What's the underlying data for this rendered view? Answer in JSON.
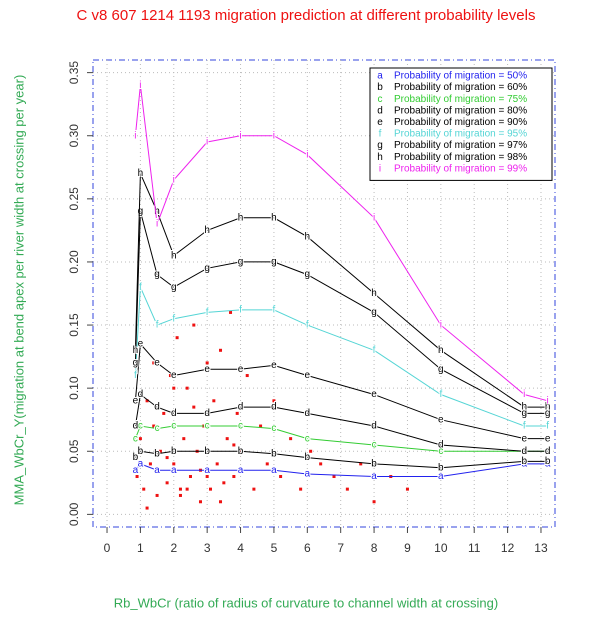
{
  "chart_data": {
    "type": "line",
    "title": "C v8 607 1214 1193 migration prediction at different probability levels",
    "x_label": "Rb_WbCr (ratio of radius of curvature to channel width at crossing)",
    "y_label": "MMA_WbCr_Y(migration at bend apex per river width at crossing per year)",
    "xlim": [
      -0.42,
      13.42
    ],
    "ylim": [
      -0.01,
      0.36
    ],
    "xticks": [
      0,
      1,
      2,
      3,
      4,
      5,
      6,
      7,
      8,
      9,
      10,
      11,
      12,
      13
    ],
    "yticks": [
      {
        "value": 0,
        "label": "0.00"
      },
      0.05,
      {
        "value": 0.1,
        "label": "0.10"
      },
      0.15,
      {
        "value": 0.2,
        "label": "0.20"
      },
      0.25,
      {
        "value": 0.3,
        "label": "0.30"
      },
      0.35
    ],
    "grid": true,
    "legend": "top-right",
    "x": [
      0.85,
      1.0,
      1.5,
      2.0,
      3.0,
      4.0,
      5.0,
      6.0,
      8.0,
      10.0,
      12.5,
      13.2
    ],
    "series": [
      {
        "symbol": "a",
        "name": "Probability of migration = 50%",
        "color": "#2222ee",
        "values": [
          0.035,
          0.04,
          0.035,
          0.035,
          0.035,
          0.035,
          0.035,
          0.032,
          0.03,
          0.03,
          0.04,
          0.04
        ]
      },
      {
        "symbol": "b",
        "name": "Probability of migration = 60%",
        "color": "#000000",
        "values": [
          0.045,
          0.05,
          0.048,
          0.05,
          0.05,
          0.05,
          0.048,
          0.045,
          0.04,
          0.037,
          0.042,
          0.042
        ]
      },
      {
        "symbol": "c",
        "name": "Probability of migration = 75%",
        "color": "#33cc33",
        "values": [
          0.06,
          0.07,
          0.068,
          0.07,
          0.07,
          0.07,
          0.068,
          0.06,
          0.055,
          0.05,
          0.05,
          0.05
        ]
      },
      {
        "symbol": "d",
        "name": "Probability of migration = 80%",
        "color": "#000000",
        "values": [
          0.07,
          0.095,
          0.085,
          0.08,
          0.08,
          0.085,
          0.085,
          0.08,
          0.07,
          0.055,
          0.05,
          0.05
        ]
      },
      {
        "symbol": "e",
        "name": "Probability of migration = 90%",
        "color": "#000000",
        "values": [
          0.09,
          0.135,
          0.12,
          0.11,
          0.115,
          0.115,
          0.118,
          0.11,
          0.095,
          0.075,
          0.06,
          0.06
        ]
      },
      {
        "symbol": "f",
        "name": "Probability of migration = 95%",
        "color": "#55d5d5",
        "values": [
          0.11,
          0.18,
          0.15,
          0.155,
          0.16,
          0.162,
          0.162,
          0.15,
          0.13,
          0.095,
          0.07,
          0.07
        ]
      },
      {
        "symbol": "g",
        "name": "Probability of migration = 97%",
        "color": "#000000",
        "values": [
          0.12,
          0.24,
          0.19,
          0.18,
          0.195,
          0.2,
          0.2,
          0.19,
          0.16,
          0.115,
          0.08,
          0.08
        ]
      },
      {
        "symbol": "h",
        "name": "Probability of migration = 98%",
        "color": "#000000",
        "values": [
          0.13,
          0.27,
          0.24,
          0.205,
          0.225,
          0.235,
          0.235,
          0.22,
          0.175,
          0.13,
          0.085,
          0.085
        ]
      },
      {
        "symbol": "i",
        "name": "Probability of migration = 99%",
        "color": "#ee22ee",
        "values": [
          0.3,
          0.34,
          0.23,
          0.265,
          0.295,
          0.3,
          0.3,
          0.285,
          0.235,
          0.15,
          0.095,
          0.09
        ]
      }
    ],
    "points": {
      "color": "#ee1111",
      "x": [
        0.9,
        1.0,
        1.1,
        1.2,
        1.3,
        1.4,
        1.5,
        1.6,
        1.7,
        1.8,
        1.9,
        2.0,
        2.1,
        2.2,
        2.3,
        2.4,
        2.5,
        2.6,
        2.7,
        2.8,
        2.9,
        3.0,
        3.1,
        3.2,
        3.3,
        3.4,
        3.5,
        3.6,
        3.7,
        3.8,
        3.9,
        4.0,
        4.2,
        4.4,
        4.6,
        4.8,
        5.0,
        5.2,
        5.5,
        5.8,
        6.1,
        6.4,
        6.8,
        7.2,
        7.6,
        8.0,
        8.5,
        9.0,
        1.2,
        1.5,
        1.8,
        2.2,
        2.6,
        3.0,
        3.4,
        3.8,
        1.4,
        2.0,
        2.4,
        2.8
      ],
      "y": [
        0.03,
        0.06,
        0.02,
        0.09,
        0.04,
        0.12,
        0.015,
        0.05,
        0.08,
        0.025,
        0.11,
        0.04,
        0.14,
        0.02,
        0.06,
        0.1,
        0.03,
        0.15,
        0.05,
        0.01,
        0.07,
        0.12,
        0.02,
        0.09,
        0.04,
        0.13,
        0.025,
        0.06,
        0.16,
        0.03,
        0.08,
        0.05,
        0.11,
        0.02,
        0.07,
        0.04,
        0.09,
        0.03,
        0.06,
        0.02,
        0.05,
        0.04,
        0.03,
        0.02,
        0.04,
        0.01,
        0.03,
        0.02,
        0.005,
        0.035,
        0.045,
        0.015,
        0.085,
        0.03,
        0.01,
        0.055,
        0.07,
        0.1,
        0.02,
        0.035
      ]
    }
  }
}
